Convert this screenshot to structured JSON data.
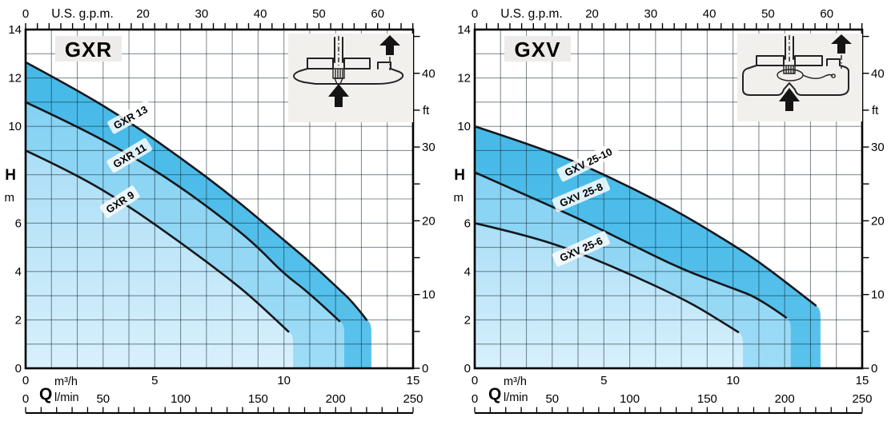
{
  "colors": {
    "background": "#ffffff",
    "band_dark_top": "#46b9e8",
    "band_dark_bottom": "#5ac2ec",
    "band_mid_top": "#86d2f3",
    "band_mid_bottom": "#9edcf6",
    "band_light_top": "#abdef6",
    "band_light_bottom": "#d8f0fc",
    "curve_stroke": "#14181c",
    "grid_stroke": "rgba(15,35,45,0.5)",
    "axis_stroke": "#000000",
    "title_box_bg": "#edecea",
    "inset_bg": "#f1f0ed",
    "curve_label_chip": "rgba(255,255,255,0.82)"
  },
  "chart_data": [
    {
      "type": "line",
      "title": "GXR",
      "x_axis_m3h": {
        "range": [
          0,
          15
        ],
        "labels": [
          0,
          5,
          10,
          15
        ],
        "unit": "m³/h"
      },
      "y_axis_m": {
        "range": [
          0,
          14
        ],
        "labels": [
          14,
          12,
          10,
          6,
          4,
          2,
          0
        ],
        "symbol": "H",
        "unit": "m"
      },
      "top_axis_gpm": {
        "title": "U.S. g.p.m.",
        "labels": [
          0,
          20,
          30,
          40,
          50,
          60
        ],
        "minor_step": 2,
        "max_minor": 66,
        "gpm_per_m3h": 4.4029
      },
      "right_axis_ft": {
        "unit": "ft",
        "labels": [
          40,
          30,
          20,
          10,
          0
        ],
        "unit_label_at": 35,
        "minor_step": 5,
        "max_minor": 45,
        "ft_per_m": 3.2808
      },
      "bottom_axis_lmin": {
        "symbol": "Q",
        "unit": "l/min",
        "labels": [
          0,
          50,
          100,
          150,
          200,
          250
        ],
        "minor_step": 10,
        "lmin_per_m3h": 16.6667
      },
      "series": [
        {
          "name": "GXR 13",
          "band": "dark",
          "points_q_h": [
            [
              0,
              12.65
            ],
            [
              2,
              11.5
            ],
            [
              4,
              10.2
            ],
            [
              6,
              8.7
            ],
            [
              8,
              7.1
            ],
            [
              10,
              5.3
            ],
            [
              11,
              4.4
            ],
            [
              12,
              3.4
            ],
            [
              12.7,
              2.7
            ],
            [
              13.2,
              2.0
            ]
          ],
          "label_pos": {
            "x": 163,
            "y": 147,
            "angle": -29
          }
        },
        {
          "name": "GXR 11",
          "band": "mid",
          "points_q_h": [
            [
              0,
              11.0
            ],
            [
              2,
              10.0
            ],
            [
              4,
              8.85
            ],
            [
              6,
              7.5
            ],
            [
              8,
              5.9
            ],
            [
              9,
              5.0
            ],
            [
              10,
              3.9
            ],
            [
              11,
              3.1
            ],
            [
              12.15,
              1.95
            ]
          ],
          "label_pos": {
            "x": 162,
            "y": 195,
            "angle": -31
          }
        },
        {
          "name": "GXR 9",
          "band": "light",
          "points_q_h": [
            [
              0,
              9.0
            ],
            [
              2,
              8.0
            ],
            [
              4,
              6.7
            ],
            [
              6,
              5.2
            ],
            [
              8,
              3.6
            ],
            [
              9,
              2.7
            ],
            [
              10.17,
              1.52
            ]
          ],
          "label_pos": {
            "x": 150,
            "y": 253,
            "angle": -33
          }
        }
      ]
    },
    {
      "type": "line",
      "title": "GXV",
      "x_axis_m3h": {
        "range": [
          0,
          15
        ],
        "labels": [
          0,
          5,
          10,
          15
        ],
        "unit": "m³/h"
      },
      "y_axis_m": {
        "range": [
          0,
          14
        ],
        "labels": [
          14,
          12,
          10,
          6,
          4,
          2,
          0
        ],
        "symbol": "H",
        "unit": "m"
      },
      "top_axis_gpm": {
        "title": "U.S. g.p.m.",
        "labels": [
          0,
          20,
          30,
          40,
          50,
          60
        ],
        "minor_step": 2,
        "max_minor": 66,
        "gpm_per_m3h": 4.4029
      },
      "right_axis_ft": {
        "unit": "ft",
        "labels": [
          40,
          30,
          20,
          10,
          0
        ],
        "unit_label_at": 35,
        "minor_step": 5,
        "max_minor": 45,
        "ft_per_m": 3.2808
      },
      "bottom_axis_lmin": {
        "symbol": "Q",
        "unit": "l/min",
        "labels": [
          0,
          50,
          100,
          150,
          200,
          250
        ],
        "minor_step": 10,
        "lmin_per_m3h": 16.6667
      },
      "series": [
        {
          "name": "GXV 25-10",
          "band": "dark",
          "points_q_h": [
            [
              0,
              10.0
            ],
            [
              2,
              9.3
            ],
            [
              4,
              8.5
            ],
            [
              6,
              7.5
            ],
            [
              8,
              6.4
            ],
            [
              10,
              5.1
            ],
            [
              11,
              4.4
            ],
            [
              12,
              3.6
            ],
            [
              13.2,
              2.6
            ]
          ],
          "label_pos": {
            "x": 174,
            "y": 203,
            "angle": -26
          }
        },
        {
          "name": "GXV 25-8",
          "band": "mid",
          "points_q_h": [
            [
              0,
              8.1
            ],
            [
              2,
              7.15
            ],
            [
              4,
              6.2
            ],
            [
              6,
              5.15
            ],
            [
              8,
              4.1
            ],
            [
              10,
              3.3
            ],
            [
              11,
              2.9
            ],
            [
              12.05,
              2.1
            ]
          ],
          "label_pos": {
            "x": 165,
            "y": 244,
            "angle": -23
          }
        },
        {
          "name": "GXV 25-6",
          "band": "light",
          "points_q_h": [
            [
              0,
              6.0
            ],
            [
              2,
              5.5
            ],
            [
              4,
              4.8
            ],
            [
              6,
              3.9
            ],
            [
              8,
              2.9
            ],
            [
              9,
              2.3
            ],
            [
              10.2,
              1.5
            ]
          ],
          "label_pos": {
            "x": 165,
            "y": 312,
            "angle": -24
          }
        }
      ]
    }
  ]
}
